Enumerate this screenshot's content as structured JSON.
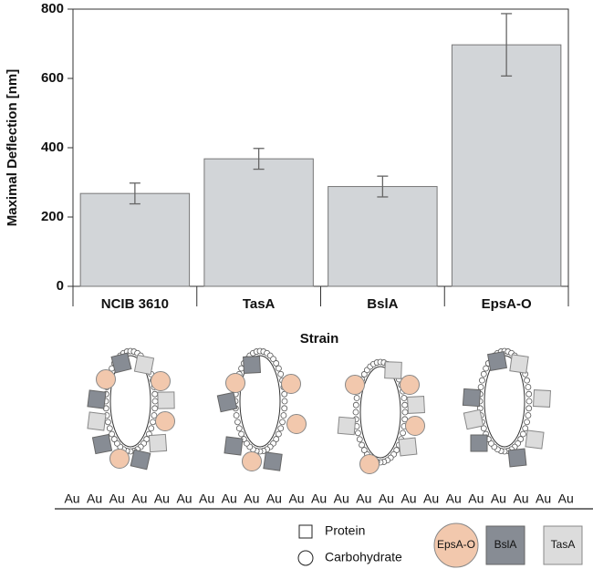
{
  "chart_data": {
    "type": "bar",
    "ylabel": "Maximal Deflection [nm]",
    "xlabel": "Strain",
    "categories": [
      "NCIB 3610",
      "TasA",
      "BslA",
      "EpsA-O"
    ],
    "values": [
      268,
      368,
      288,
      697
    ],
    "errors": [
      30,
      30,
      30,
      90
    ],
    "color": "#d2d5d8",
    "ylim": [
      0,
      800
    ],
    "yticks": [
      0,
      200,
      400,
      600,
      800
    ]
  },
  "diagram": {
    "substrate_labels": [
      "Au",
      "Au",
      "Au",
      "Au",
      "Au",
      "Au",
      "Au",
      "Au",
      "Au",
      "Au",
      "Au",
      "Au",
      "Au",
      "Au",
      "Au",
      "Au",
      "Au",
      "Au",
      "Au",
      "Au",
      "Au",
      "Au",
      "Au"
    ],
    "legend": {
      "protein": "Protein",
      "carbohydrate": "Carbohydrate",
      "epsa": "EpsA-O",
      "bsla": "BslA",
      "tasa": "TasA"
    }
  }
}
